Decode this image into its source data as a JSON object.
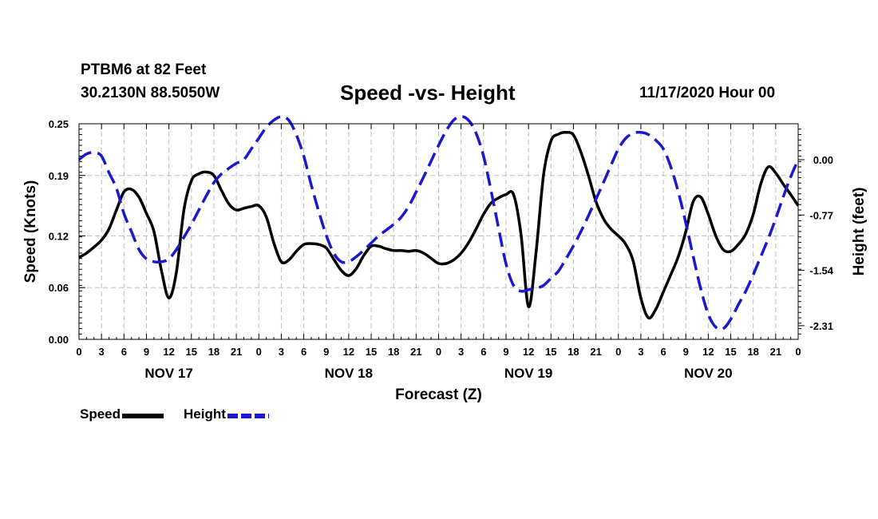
{
  "header": {
    "station": "PTBM6 at 82 Feet",
    "coords": "30.2130N 88.5050W",
    "title": "Speed -vs- Height",
    "datetime": "11/17/2020 Hour 00"
  },
  "legend": {
    "speed_label": "Speed",
    "height_label": "Height"
  },
  "colors": {
    "speed": "#000000",
    "height": "#1a1acc",
    "grid": "#bdbdbd"
  },
  "chart_data": {
    "type": "line",
    "title": "Speed -vs- Height",
    "xlabel": "Forecast (Z)",
    "ylabel": "Speed (Knots)",
    "y2label": "Height (feet)",
    "xlim": [
      0,
      96
    ],
    "ylim": [
      0.0,
      0.25
    ],
    "y2lim": [
      -2.5,
      0.5
    ],
    "y_ticks": [
      0.0,
      0.06,
      0.12,
      0.19,
      0.25
    ],
    "y_tick_labels": [
      "0.00",
      "0.06",
      "0.12",
      "0.19",
      "0.25"
    ],
    "y2_ticks": [
      0.0,
      -0.77,
      -1.54,
      -2.31
    ],
    "y2_tick_labels": [
      "0.00",
      "-0.77",
      "-1.54",
      "-2.31"
    ],
    "x_tick_labels": [
      "0",
      "3",
      "6",
      "9",
      "12",
      "15",
      "18",
      "21",
      "0",
      "3",
      "6",
      "9",
      "12",
      "15",
      "18",
      "21",
      "0",
      "3",
      "6",
      "9",
      "12",
      "15",
      "18",
      "21",
      "0",
      "3",
      "6",
      "9",
      "12",
      "15",
      "18",
      "21",
      "0"
    ],
    "day_labels": [
      {
        "label": "NOV 17",
        "hour": 12
      },
      {
        "label": "NOV 18",
        "hour": 36
      },
      {
        "label": "NOV 19",
        "hour": 60
      },
      {
        "label": "NOV 20",
        "hour": 84
      }
    ],
    "grid": true,
    "series": [
      {
        "name": "Speed",
        "axis": "left",
        "style": "solid",
        "x": [
          0,
          1,
          2,
          3,
          4,
          5,
          6,
          7,
          8,
          9,
          10,
          11,
          12,
          13,
          14,
          15,
          16,
          17,
          18,
          19,
          20,
          21,
          22,
          23,
          24,
          25,
          26,
          27,
          28,
          29,
          30,
          31,
          32,
          33,
          34,
          35,
          36,
          37,
          38,
          39,
          40,
          41,
          42,
          43,
          44,
          45,
          46,
          47,
          48,
          49,
          50,
          51,
          52,
          53,
          54,
          55,
          56,
          57,
          58,
          59,
          60,
          61,
          62,
          63,
          64,
          65,
          66,
          67,
          68,
          69,
          70,
          71,
          72,
          73,
          74,
          75,
          76,
          77,
          78,
          79,
          80,
          81,
          82,
          83,
          84,
          85,
          86,
          87,
          88,
          89,
          90,
          91,
          92,
          93,
          94,
          95,
          96
        ],
        "values": [
          0.095,
          0.1,
          0.107,
          0.115,
          0.128,
          0.15,
          0.171,
          0.174,
          0.165,
          0.146,
          0.125,
          0.08,
          0.048,
          0.078,
          0.15,
          0.184,
          0.192,
          0.194,
          0.19,
          0.173,
          0.157,
          0.15,
          0.152,
          0.154,
          0.155,
          0.142,
          0.112,
          0.09,
          0.092,
          0.102,
          0.11,
          0.111,
          0.11,
          0.106,
          0.093,
          0.08,
          0.074,
          0.082,
          0.097,
          0.108,
          0.108,
          0.105,
          0.103,
          0.103,
          0.102,
          0.103,
          0.1,
          0.094,
          0.088,
          0.088,
          0.092,
          0.1,
          0.112,
          0.128,
          0.145,
          0.158,
          0.164,
          0.168,
          0.168,
          0.122,
          0.038,
          0.1,
          0.19,
          0.23,
          0.238,
          0.24,
          0.237,
          0.217,
          0.19,
          0.16,
          0.14,
          0.128,
          0.12,
          0.11,
          0.09,
          0.048,
          0.025,
          0.035,
          0.055,
          0.075,
          0.096,
          0.125,
          0.16,
          0.165,
          0.145,
          0.12,
          0.104,
          0.102,
          0.11,
          0.122,
          0.145,
          0.18,
          0.2,
          0.193,
          0.18,
          0.168,
          0.155
        ]
      },
      {
        "name": "Height",
        "axis": "right",
        "style": "dashed",
        "x": [
          0,
          1,
          2,
          3,
          4,
          5,
          6,
          7,
          8,
          9,
          10,
          11,
          12,
          13,
          14,
          15,
          16,
          17,
          18,
          19,
          20,
          21,
          22,
          23,
          24,
          25,
          26,
          27,
          28,
          29,
          30,
          31,
          32,
          33,
          34,
          35,
          36,
          37,
          38,
          39,
          40,
          41,
          42,
          43,
          44,
          45,
          46,
          47,
          48,
          49,
          50,
          51,
          52,
          53,
          54,
          55,
          56,
          57,
          58,
          59,
          60,
          61,
          62,
          63,
          64,
          65,
          66,
          67,
          68,
          69,
          70,
          71,
          72,
          73,
          74,
          75,
          76,
          77,
          78,
          79,
          80,
          81,
          82,
          83,
          84,
          85,
          86,
          87,
          88,
          89,
          90,
          91,
          92,
          93,
          94,
          95,
          96
        ],
        "values": [
          0.0,
          0.08,
          0.1,
          0.05,
          -0.18,
          -0.4,
          -0.75,
          -1.0,
          -1.25,
          -1.38,
          -1.42,
          -1.42,
          -1.38,
          -1.25,
          -1.08,
          -0.9,
          -0.7,
          -0.5,
          -0.32,
          -0.2,
          -0.12,
          -0.05,
          0.0,
          0.15,
          0.3,
          0.45,
          0.55,
          0.6,
          0.55,
          0.35,
          0.05,
          -0.35,
          -0.72,
          -1.05,
          -1.3,
          -1.42,
          -1.42,
          -1.35,
          -1.26,
          -1.16,
          -1.06,
          -0.98,
          -0.9,
          -0.8,
          -0.65,
          -0.45,
          -0.24,
          -0.02,
          0.2,
          0.4,
          0.55,
          0.6,
          0.55,
          0.37,
          0.05,
          -0.43,
          -0.95,
          -1.45,
          -1.75,
          -1.83,
          -1.81,
          -1.79,
          -1.75,
          -1.65,
          -1.55,
          -1.38,
          -1.2,
          -1.0,
          -0.78,
          -0.55,
          -0.32,
          -0.08,
          0.15,
          0.3,
          0.37,
          0.38,
          0.35,
          0.27,
          0.15,
          -0.1,
          -0.45,
          -0.88,
          -1.35,
          -1.8,
          -2.15,
          -2.33,
          -2.35,
          -2.22,
          -2.02,
          -1.83,
          -1.6,
          -1.35,
          -1.1,
          -0.82,
          -0.52,
          -0.24,
          0.0
        ]
      }
    ]
  }
}
